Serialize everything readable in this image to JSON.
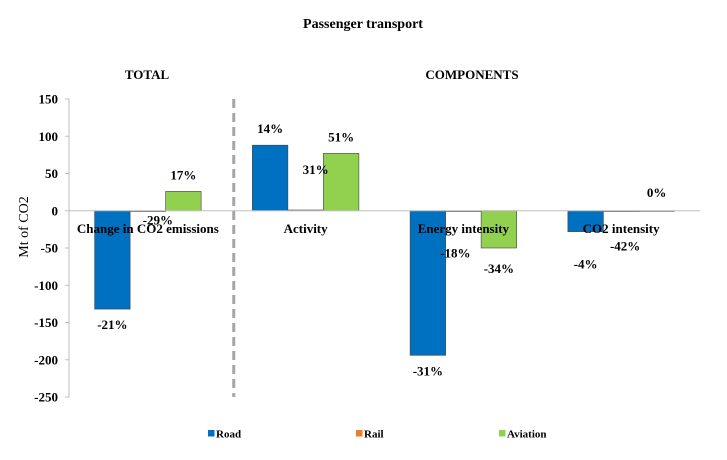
{
  "chart_data": {
    "type": "bar",
    "title": "Passenger transport",
    "section_labels": {
      "total": "TOTAL",
      "components": "COMPONENTS"
    },
    "ylabel": "Mt of CO2",
    "xlabel": "",
    "ylim": [
      -250,
      150
    ],
    "yticks": [
      150,
      100,
      50,
      0,
      -50,
      -100,
      -150,
      -200,
      -250
    ],
    "categories": [
      "Change in CO2 emissions",
      "Activity",
      "Energy intensity",
      "CO2 intensity"
    ],
    "series": [
      {
        "name": "Road",
        "color": "#0070C0",
        "values": [
          -132,
          88,
          -194,
          -28
        ],
        "labels": [
          "-21%",
          "14%",
          "-31%",
          "-4%"
        ]
      },
      {
        "name": "Rail",
        "color": "#ED7D31",
        "values": [
          -1,
          1,
          -1,
          -1
        ],
        "labels": [
          "-29%",
          "31%",
          "-18%",
          "-42%"
        ]
      },
      {
        "name": "Aviation",
        "color": "#92D050",
        "values": [
          26,
          77,
          -50,
          0
        ],
        "labels": [
          "17%",
          "51%",
          "-34%",
          "0%"
        ]
      }
    ],
    "legend_position": "bottom",
    "grid": false,
    "divider_after_category": 0
  }
}
